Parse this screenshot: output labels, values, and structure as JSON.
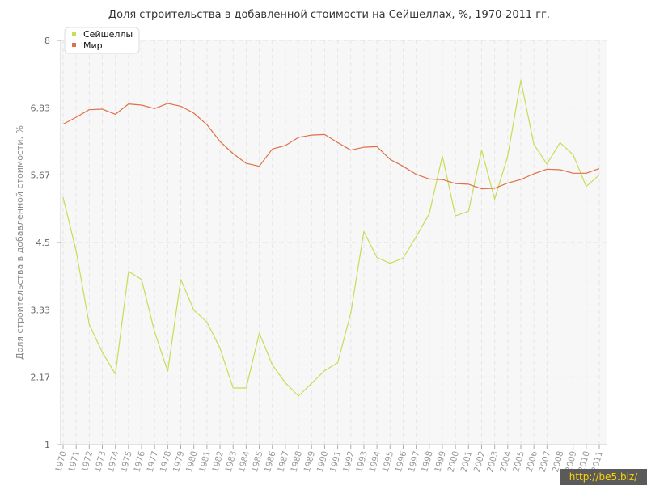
{
  "title": "Доля строительства в добавленной стоимости на Сейшеллах, %, 1970-2011 гг.",
  "watermark": "http://be5.biz/",
  "chart_data": {
    "type": "line",
    "title": "Доля строительства в добавленной стоимости на Сейшеллах, %, 1970-2011 гг.",
    "ylabel": "Доля строительства в добавленной стоимости, %",
    "xlabel": "",
    "ylim": [
      1,
      8
    ],
    "yticks": [
      "1",
      "2.17",
      "3.33",
      "4.5",
      "5.67",
      "6.83",
      "8"
    ],
    "ytick_values": [
      1,
      2.17,
      3.33,
      4.5,
      5.67,
      6.83,
      8
    ],
    "grid": true,
    "legend_position": "top-left",
    "x": [
      "1970",
      "1971",
      "1972",
      "1973",
      "1974",
      "1975",
      "1976",
      "1977",
      "1978",
      "1979",
      "1980",
      "1981",
      "1982",
      "1983",
      "1984",
      "1985",
      "1986",
      "1987",
      "1988",
      "1989",
      "1990",
      "1991",
      "1992",
      "1993",
      "1994",
      "1995",
      "1996",
      "1997",
      "1998",
      "1999",
      "2000",
      "2001",
      "2002",
      "2003",
      "2004",
      "2005",
      "2006",
      "2007",
      "2008",
      "2009",
      "2010",
      "2011"
    ],
    "series": [
      {
        "name": "Сейшеллы",
        "color": "#c8dc56",
        "values": [
          5.28,
          4.35,
          3.08,
          2.6,
          2.22,
          4.0,
          3.86,
          2.95,
          2.27,
          3.86,
          3.33,
          3.12,
          2.67,
          1.98,
          1.98,
          2.93,
          2.38,
          2.07,
          1.84,
          2.06,
          2.28,
          2.42,
          3.28,
          4.69,
          4.24,
          4.14,
          4.23,
          4.6,
          5.0,
          6.0,
          4.96,
          5.04,
          6.1,
          5.25,
          6.0,
          7.31,
          6.2,
          5.86,
          6.23,
          6.02,
          5.47,
          5.67
        ]
      },
      {
        "name": "Мир",
        "color": "#e07048",
        "values": [
          6.55,
          6.67,
          6.8,
          6.81,
          6.72,
          6.9,
          6.88,
          6.82,
          6.91,
          6.86,
          6.74,
          6.54,
          6.25,
          6.04,
          5.87,
          5.82,
          6.12,
          6.18,
          6.32,
          6.36,
          6.37,
          6.23,
          6.1,
          6.15,
          6.16,
          5.94,
          5.82,
          5.68,
          5.6,
          5.59,
          5.52,
          5.51,
          5.43,
          5.44,
          5.53,
          5.59,
          5.69,
          5.77,
          5.76,
          5.7,
          5.7,
          5.78
        ]
      }
    ]
  }
}
